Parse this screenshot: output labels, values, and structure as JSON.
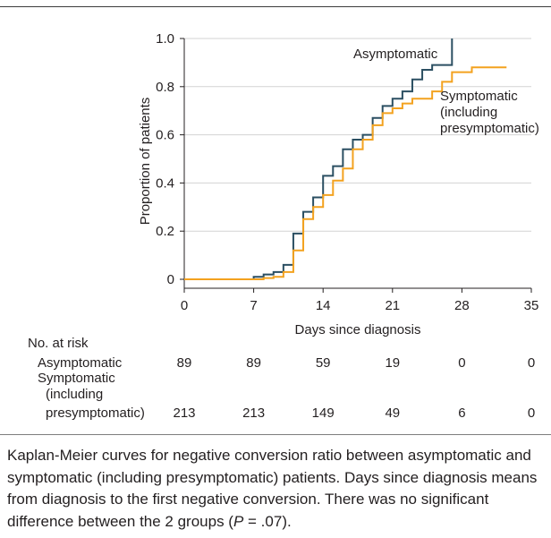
{
  "chart_data": {
    "type": "line",
    "step": true,
    "xlabel": "Days since diagnosis",
    "ylabel": "Proportion of patients",
    "xlim": [
      0,
      35
    ],
    "ylim": [
      0,
      1.0
    ],
    "x_tick_labels": [
      "0",
      "7",
      "14",
      "21",
      "28",
      "35"
    ],
    "y_tick_labels": [
      "0",
      "0.2",
      "0.4",
      "0.6",
      "0.8",
      "1.0"
    ],
    "grid": true,
    "series": [
      {
        "label_lines": [
          "Asymptomatic"
        ],
        "color": "#2b4f62",
        "last_day": 27,
        "points": [
          [
            0,
            0
          ],
          [
            7,
            0.01
          ],
          [
            8,
            0.02
          ],
          [
            9,
            0.03
          ],
          [
            10,
            0.06
          ],
          [
            11,
            0.19
          ],
          [
            12,
            0.28
          ],
          [
            13,
            0.34
          ],
          [
            14,
            0.43
          ],
          [
            15,
            0.47
          ],
          [
            16,
            0.54
          ],
          [
            17,
            0.58
          ],
          [
            18,
            0.6
          ],
          [
            19,
            0.67
          ],
          [
            20,
            0.72
          ],
          [
            21,
            0.75
          ],
          [
            22,
            0.78
          ],
          [
            23,
            0.83
          ],
          [
            24,
            0.87
          ],
          [
            25,
            0.89
          ],
          [
            27,
            1.0
          ]
        ]
      },
      {
        "label_lines": [
          "Symptomatic",
          "(including",
          "presymptomatic)"
        ],
        "color": "#f3a21f",
        "last_day": 32.5,
        "points": [
          [
            0,
            0
          ],
          [
            8,
            0.005
          ],
          [
            9,
            0.01
          ],
          [
            10,
            0.03
          ],
          [
            11,
            0.12
          ],
          [
            12,
            0.25
          ],
          [
            13,
            0.3
          ],
          [
            14,
            0.35
          ],
          [
            15,
            0.41
          ],
          [
            16,
            0.46
          ],
          [
            17,
            0.54
          ],
          [
            18,
            0.58
          ],
          [
            19,
            0.64
          ],
          [
            20,
            0.69
          ],
          [
            21,
            0.71
          ],
          [
            22,
            0.73
          ],
          [
            23,
            0.75
          ],
          [
            25,
            0.78
          ],
          [
            26,
            0.82
          ],
          [
            27,
            0.86
          ],
          [
            29,
            0.88
          ]
        ]
      }
    ]
  },
  "risk_table": {
    "title": "No. at risk",
    "rows": [
      {
        "label_lines": [
          "Asymptomatic"
        ],
        "counts": [
          89,
          89,
          59,
          19,
          0,
          0
        ]
      },
      {
        "label_lines": [
          "Symptomatic",
          "(including",
          "presymptomatic)"
        ],
        "counts": [
          213,
          213,
          149,
          49,
          6,
          0
        ]
      }
    ]
  },
  "caption": {
    "lines": [
      "Kaplan-Meier curves for negative conversion ratio between asymptomatic and",
      "symptomatic (including presymptomatic) patients. Days since diagnosis means",
      "from diagnosis to the first negative conversion. There was no significant"
    ],
    "last_line_before": "difference between the 2 groups (",
    "last_line_italic": "P",
    "last_line_after": " = .07)."
  }
}
